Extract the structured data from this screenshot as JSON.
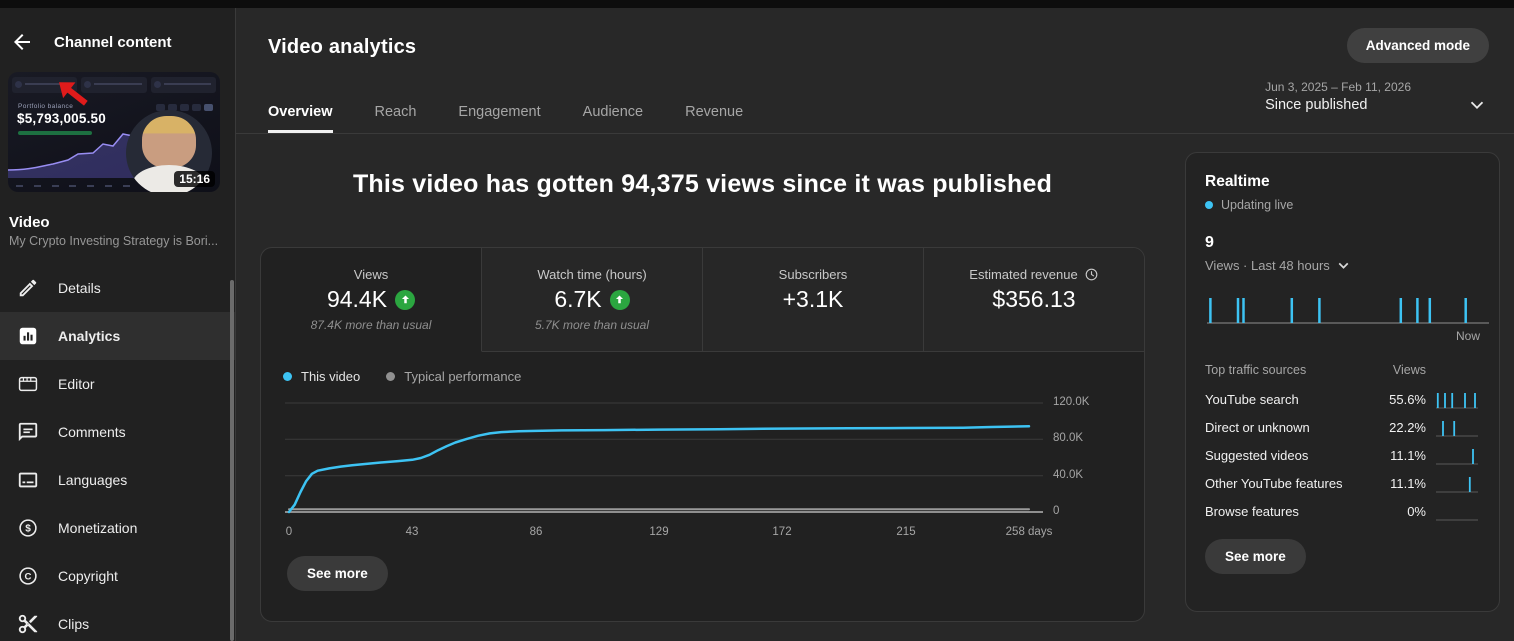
{
  "colors": {
    "accent": "#3dc3f3",
    "green": "#2ba640"
  },
  "sidebar": {
    "back_label": "Channel content",
    "thumbnail": {
      "panel_label": "Portfolio balance",
      "balance": "$5,793,005.50",
      "duration": "15:16"
    },
    "section_label": "Video",
    "video_title": "My Crypto Investing Strategy is Bori...",
    "items": [
      {
        "label": "Details"
      },
      {
        "label": "Analytics"
      },
      {
        "label": "Editor"
      },
      {
        "label": "Comments"
      },
      {
        "label": "Languages"
      },
      {
        "label": "Monetization"
      },
      {
        "label": "Copyright"
      },
      {
        "label": "Clips"
      }
    ]
  },
  "header": {
    "title": "Video analytics",
    "advanced_mode_label": "Advanced mode",
    "date_range": "Jun 3, 2025 – Feb 11, 2026",
    "date_mode": "Since published"
  },
  "tabs": [
    {
      "label": "Overview"
    },
    {
      "label": "Reach"
    },
    {
      "label": "Engagement"
    },
    {
      "label": "Audience"
    },
    {
      "label": "Revenue"
    }
  ],
  "headline": "This video has gotten 94,375 views since it was published",
  "metrics": {
    "cards": [
      {
        "label": "Views",
        "value": "94.4K",
        "sub": "87.4K more than usual"
      },
      {
        "label": "Watch time (hours)",
        "value": "6.7K",
        "sub": "5.7K more than usual"
      },
      {
        "label": "Subscribers",
        "value": "+3.1K"
      },
      {
        "label": "Estimated revenue",
        "value": "$356.13"
      }
    ]
  },
  "legend": [
    {
      "label": "This video",
      "color": "#3dc3f3"
    },
    {
      "label": "Typical performance",
      "color": "#909090"
    }
  ],
  "chart_data": {
    "type": "line",
    "title": "This video has gotten 94,375 views since it was published",
    "xlabel": "days",
    "ylabel": "Views",
    "xlim": [
      0,
      258
    ],
    "ylim": [
      0,
      120000
    ],
    "grid": true,
    "legend_position": "top-left",
    "x_ticks": [
      {
        "value": 0,
        "label": "0"
      },
      {
        "value": 43,
        "label": "43"
      },
      {
        "value": 86,
        "label": "86"
      },
      {
        "value": 129,
        "label": "129"
      },
      {
        "value": 172,
        "label": "172"
      },
      {
        "value": 215,
        "label": "215"
      },
      {
        "value": 258,
        "label": "258 days"
      }
    ],
    "y_ticks": [
      {
        "value": 0,
        "label": "0"
      },
      {
        "value": 40000,
        "label": "40.0K"
      },
      {
        "value": 80000,
        "label": "80.0K"
      },
      {
        "value": 120000,
        "label": "120.0K"
      }
    ],
    "series": [
      {
        "name": "This video",
        "color": "#3dc3f3",
        "x": [
          0,
          2,
          4,
          6,
          8,
          10,
          14,
          18,
          22,
          27,
          32,
          38,
          43,
          46,
          49,
          52,
          55,
          58,
          62,
          66,
          70,
          74,
          80,
          86,
          95,
          110,
          129,
          150,
          172,
          195,
          215,
          235,
          245,
          258
        ],
        "y": [
          0,
          8000,
          22000,
          34000,
          42000,
          45500,
          48000,
          50000,
          51500,
          53000,
          54500,
          56000,
          57500,
          59500,
          63000,
          68000,
          72500,
          76500,
          80500,
          84000,
          86500,
          88000,
          88800,
          89300,
          89800,
          90200,
          90700,
          91200,
          91800,
          92200,
          92500,
          92800,
          93600,
          94375
        ]
      },
      {
        "name": "Typical performance",
        "color": "#9a9a9a",
        "x": [
          0,
          258
        ],
        "y": [
          3000,
          3000
        ]
      }
    ]
  },
  "see_more_label": "See more",
  "realtime": {
    "title": "Realtime",
    "status": "Updating live",
    "views_count": "9",
    "views_caption": "Views · Last 48 hours",
    "now_label": "Now",
    "bar_positions": [
      0.005,
      0.105,
      0.125,
      0.3,
      0.4,
      0.695,
      0.755,
      0.8,
      0.93
    ],
    "traffic_sources": {
      "col_source": "Top traffic sources",
      "col_views": "Views",
      "rows": [
        {
          "name": "YouTube search",
          "pct": "55.6%",
          "bars": [
            0.02,
            0.2,
            0.38,
            0.7,
            0.95
          ]
        },
        {
          "name": "Direct or unknown",
          "pct": "22.2%",
          "bars": [
            0.15,
            0.43
          ]
        },
        {
          "name": "Suggested videos",
          "pct": "11.1%",
          "bars": [
            0.9
          ]
        },
        {
          "name": "Other YouTube features",
          "pct": "11.1%",
          "bars": [
            0.82
          ]
        },
        {
          "name": "Browse features",
          "pct": "0%",
          "bars": []
        }
      ]
    },
    "see_more_label": "See more"
  }
}
